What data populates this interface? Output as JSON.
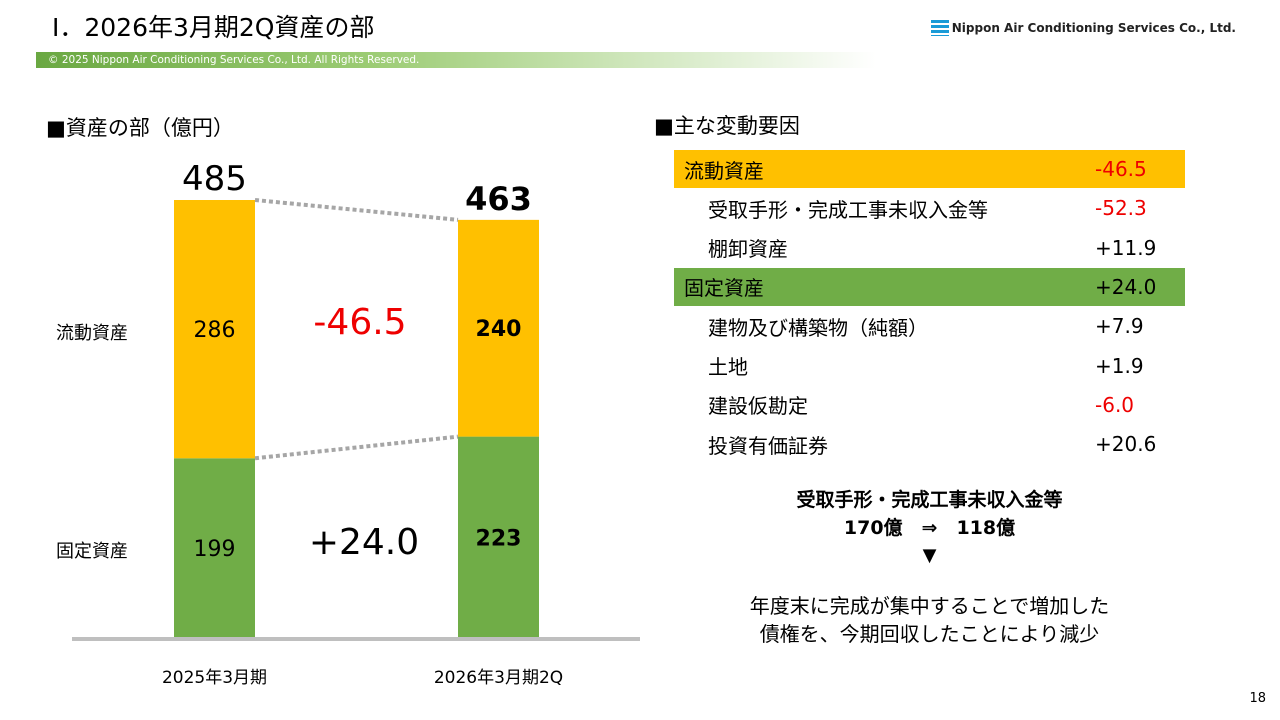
{
  "header": {
    "title": "Ⅰ．2026年3月期2Q資産の部",
    "logo_text": "Nippon Air Conditioning Services Co., Ltd.",
    "copyright": "© 2025 Nippon Air Conditioning Services Co., Ltd. All Rights Reserved."
  },
  "left_heading": "■資産の部（億円）",
  "chart_data": {
    "type": "bar",
    "stacked": true,
    "unit": "億円",
    "categories": [
      "2025年3月期",
      "2026年3月期2Q"
    ],
    "series": [
      {
        "name": "固定資産",
        "values": [
          199,
          223
        ],
        "color": "#70ad47"
      },
      {
        "name": "流動資産",
        "values": [
          286,
          240
        ],
        "color": "#ffc000"
      }
    ],
    "totals": [
      "485",
      "463"
    ],
    "changes": {
      "current": "-46.5",
      "fixed": "+24.0"
    },
    "ylim": [
      0,
      485
    ]
  },
  "right_heading": "■主な変動要因",
  "factors": [
    {
      "label": "流動資産",
      "value": "-46.5",
      "style": "orange",
      "red": true
    },
    {
      "label": "受取手形・完成工事未収入金等",
      "value": "-52.3",
      "indent": true,
      "red": true
    },
    {
      "label": "棚卸資産",
      "value": "+11.9",
      "indent": true
    },
    {
      "label": "固定資産",
      "value": "+24.0",
      "style": "green"
    },
    {
      "label": "建物及び構築物（純額）",
      "value": "+7.9",
      "indent": true
    },
    {
      "label": "土地",
      "value": "+1.9",
      "indent": true
    },
    {
      "label": "建設仮勘定",
      "value": "-6.0",
      "indent": true,
      "red": true
    },
    {
      "label": "投資有価証券",
      "value": "+20.6",
      "indent": true
    }
  ],
  "note": {
    "line1": "受取手形・完成工事未収入金等",
    "line2": "170億　⇒　118億",
    "arrow": "▼",
    "line3": "年度末に完成が集中することで増加した",
    "line4": "債権を、今期回収したことにより減少"
  },
  "page_number": "18",
  "colors": {
    "orange": "#ffc000",
    "green": "#70ad47",
    "red": "#ee0000"
  }
}
